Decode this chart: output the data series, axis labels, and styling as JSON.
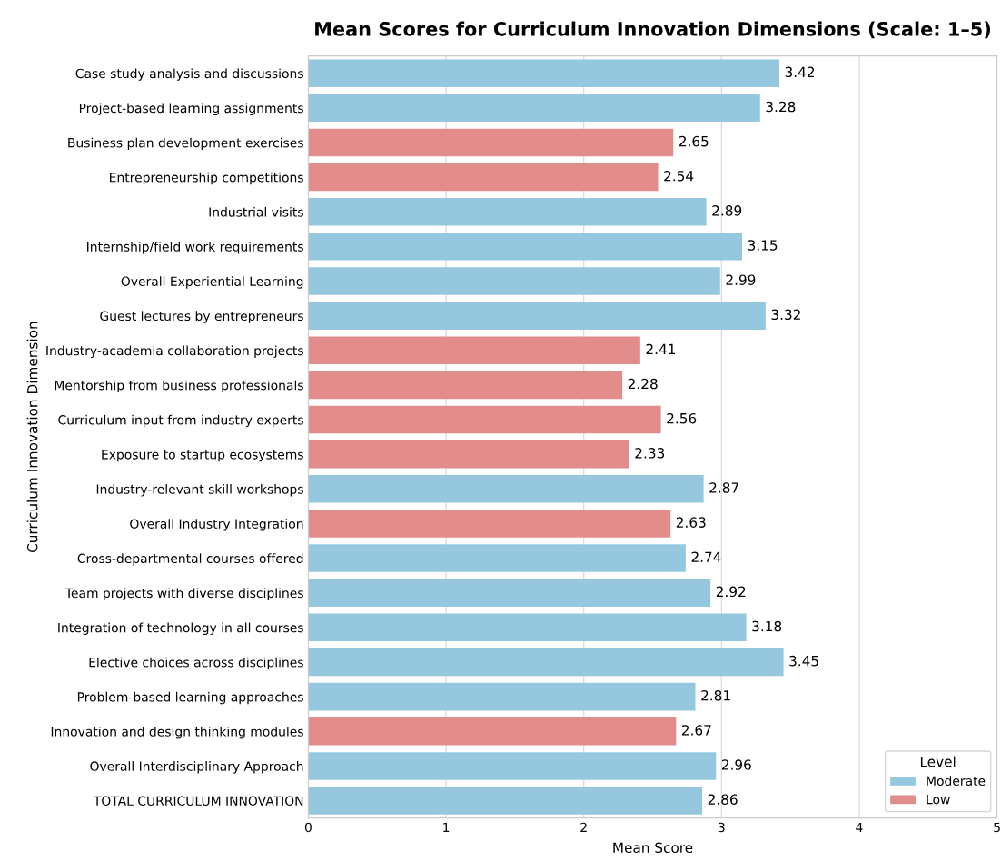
{
  "chart_data": {
    "type": "bar",
    "orientation": "horizontal",
    "title": "Mean Scores for Curriculum Innovation Dimensions (Scale: 1–5)",
    "xlabel": "Mean Score",
    "ylabel": "Curriculum Innovation Dimension",
    "legend_title": "Level",
    "categories": [
      "Case study analysis and discussions",
      "Project-based learning assignments",
      "Business plan development exercises",
      "Entrepreneurship competitions",
      "Industrial visits",
      "Internship/field work requirements",
      "Overall Experiential Learning",
      "Guest lectures by entrepreneurs",
      "Industry-academia collaboration projects",
      "Mentorship from business professionals",
      "Curriculum input from industry experts",
      "Exposure to startup ecosystems",
      "Industry-relevant skill workshops",
      "Overall Industry Integration",
      "Cross-departmental courses offered",
      "Team projects with diverse disciplines",
      "Integration of technology in all courses",
      "Elective choices across disciplines",
      "Problem-based learning approaches",
      "Innovation and design thinking modules",
      "Overall Interdisciplinary Approach",
      "TOTAL CURRICULUM INNOVATION"
    ],
    "series": [
      {
        "name": "Moderate",
        "color": "#95c8df",
        "values": [
          3.42,
          3.28,
          null,
          null,
          2.89,
          3.15,
          2.99,
          3.32,
          null,
          null,
          null,
          null,
          2.87,
          null,
          2.74,
          2.92,
          3.18,
          3.45,
          2.81,
          null,
          2.96,
          2.86
        ]
      },
      {
        "name": "Low",
        "color": "#e28c8c",
        "values": [
          null,
          null,
          2.65,
          2.54,
          null,
          null,
          null,
          null,
          2.41,
          2.28,
          2.56,
          2.33,
          null,
          2.63,
          null,
          null,
          null,
          null,
          null,
          2.67,
          null,
          null
        ]
      }
    ],
    "xlim": [
      0,
      5
    ],
    "xticks": [
      0,
      1,
      2,
      3,
      4,
      5
    ],
    "grid": "x",
    "legend": "bottom right",
    "data_labels": true
  }
}
